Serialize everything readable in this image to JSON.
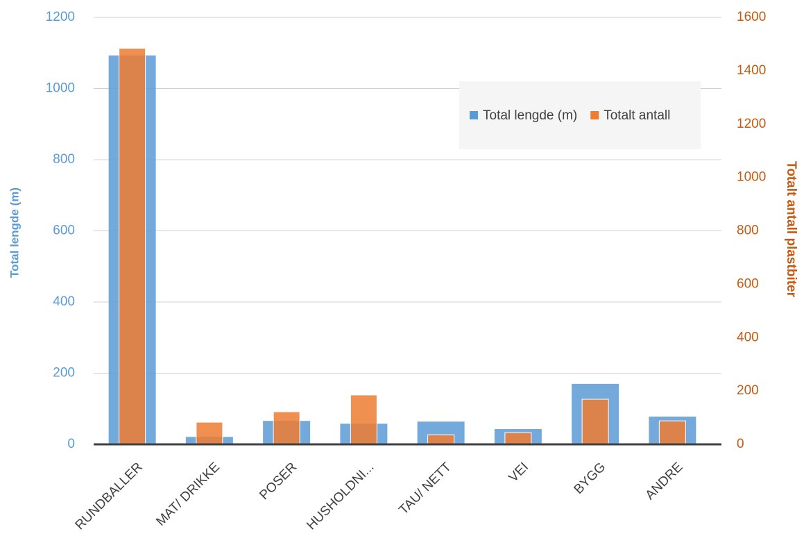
{
  "chart_data": {
    "type": "bar",
    "categories": [
      "RUNDBALLER",
      "MAT/ DRIKKE",
      "POSER",
      "HUSHOLDNI...",
      "TAU/ NETT",
      "VEI",
      "BYGG",
      "ANDRE"
    ],
    "series": [
      {
        "name": "Total lengde (m)",
        "color": "#5b9bd5",
        "values": [
          1093,
          21,
          66,
          58,
          64,
          43,
          170,
          78
        ]
      },
      {
        "name": "Totalt antall",
        "color": "#ed7d31",
        "axis": "y2",
        "values": [
          1484,
          83,
          122,
          185,
          36,
          44,
          169,
          88
        ]
      }
    ],
    "ylabel": "Total lengde (m)",
    "y2label": "Totalt antall plastbiter",
    "ylim": [
      0,
      1200
    ],
    "yticks": [
      0,
      200,
      400,
      600,
      800,
      1000,
      1200
    ],
    "y2lim": [
      0,
      1600
    ],
    "y2ticks": [
      0,
      200,
      400,
      600,
      800,
      1000,
      1200,
      1400,
      1600
    ],
    "grid": true,
    "legend": "upper right"
  }
}
